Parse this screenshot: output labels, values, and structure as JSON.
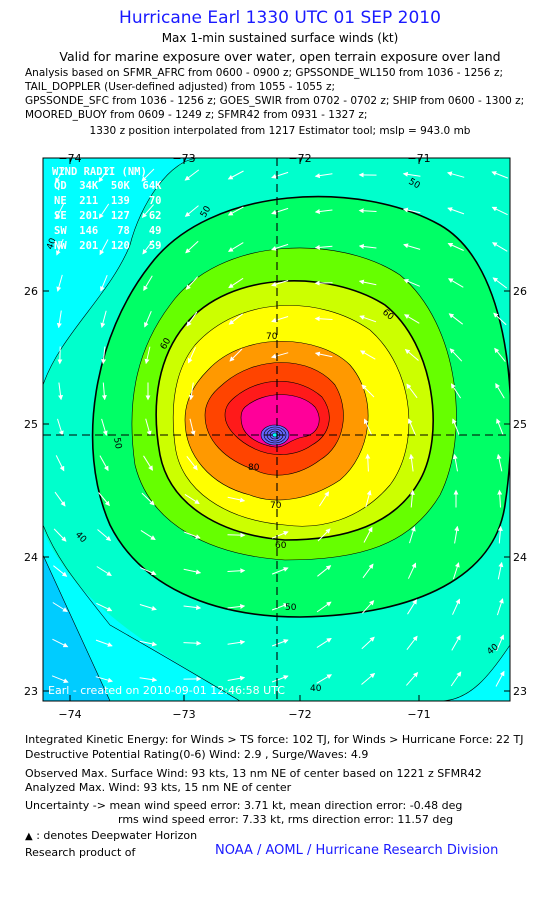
{
  "header": {
    "title": "Hurricane Earl 1330 UTC 01 SEP 2010",
    "subtitle": "Max 1-min sustained surface winds (kt)",
    "validity": "Valid for marine exposure over water, open terrain exposure over land",
    "analysis_lines": [
      "Analysis based on SFMR_AFRC from 0600 - 0900 z; GPSSONDE_WL150 from 1036 - 1256 z;",
      "TAIL_DOPPLER (User-defined adjusted) from 1055 - 1055 z;",
      "GPSSONDE_SFC from 1036 - 1256 z; GOES_SWIR from 0702 - 0702 z; SHIP from 0600 - 1300 z;",
      "MOORED_BUOY from 0609 - 1249 z; SFMR42 from 0931 - 1327 z;"
    ],
    "position_note": "1330 z position interpolated from 1217 Estimator tool; mslp = 943.0 mb"
  },
  "map": {
    "lon_ticks": [
      "−74",
      "−73",
      "−72",
      "−71"
    ],
    "lat_ticks": [
      "26",
      "25",
      "24",
      "23"
    ],
    "contour_labels": [
      "50",
      "40",
      "50",
      "60",
      "50",
      "60",
      "70",
      "80",
      "70",
      "60",
      "50",
      "40",
      "40",
      "40",
      "50"
    ],
    "wind_radii": {
      "header": "WIND RADII (NM)",
      "columns": "QD  34K  50K  64K",
      "rows": [
        "NE  211  139   70",
        "SE  201  127   62",
        "SW  146   78   49",
        "NW  201  120   59"
      ]
    },
    "credit": "Earl - created on 2010-09-01 12:46:58 UTC",
    "colors": {
      "w20": "#00ccff",
      "w30": "#00ffff",
      "w40": "#00ffcc",
      "w50": "#00ff66",
      "w60": "#66ff00",
      "w65": "#ccff00",
      "w70": "#ffff00",
      "w80": "#ff9900",
      "w90": "#ff4400",
      "w100": "#ff1a1a",
      "w110": "#ff0099"
    }
  },
  "footer": {
    "ike": "Integrated Kinetic Energy:  for Winds > TS force: 102 TJ,  for Winds > Hurricane Force: 22 TJ",
    "destructive": "Destructive Potential Rating(0-6)   Wind: 2.9 , Surge/Waves: 4.9",
    "observed": "Observed Max. Surface Wind: 93 kts, 13 nm NE of center based on 1221 z SFMR42",
    "analyzed": "Analyzed Max. Wind: 93 kts, 15 nm NE of center",
    "uncertainty1": "Uncertainty -> mean wind speed error: 3.71 kt,   mean direction error:  -0.48 deg",
    "uncertainty2": "rms wind speed error: 7.33 kt,    rms direction error: 11.57 deg",
    "deepwater": ": denotes Deepwater Horizon",
    "research": "Research product of",
    "noaa": "NOAA / AOML / Hurricane Research Division"
  }
}
